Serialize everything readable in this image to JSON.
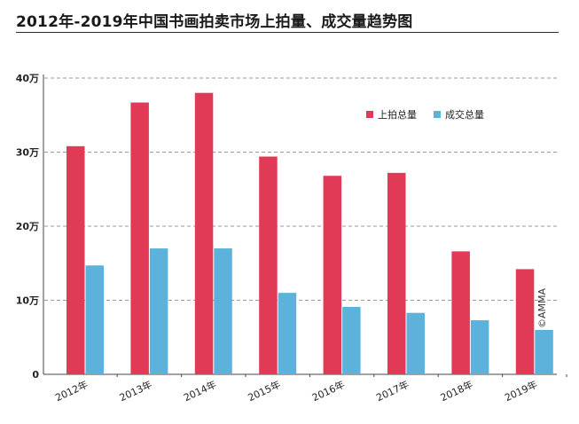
{
  "title": "2012年-2019年中国书画拍卖市场上拍量、成交量趋势图",
  "watermark": "©AMMA",
  "chart_data": {
    "type": "bar",
    "title": "2012年-2019年中国书画拍卖市场上拍量、成交量趋势图",
    "categories": [
      "2012年",
      "2013年",
      "2014年",
      "2015年",
      "2016年",
      "2017年",
      "2018年",
      "2019年"
    ],
    "series": [
      {
        "name": "上拍总量",
        "color": "#e03a56",
        "values": [
          30.8,
          36.7,
          38.0,
          29.4,
          26.8,
          27.2,
          16.6,
          14.2
        ]
      },
      {
        "name": "成交总量",
        "color": "#5cb2db",
        "values": [
          14.7,
          17.0,
          17.0,
          11.0,
          9.1,
          8.3,
          7.3,
          6.0
        ]
      }
    ],
    "yticks": [
      {
        "value": 0,
        "label": "0"
      },
      {
        "value": 10,
        "label": "10万"
      },
      {
        "value": 20,
        "label": "20万"
      },
      {
        "value": 30,
        "label": "30万"
      },
      {
        "value": 40,
        "label": "40万"
      }
    ],
    "ylim": [
      0,
      40
    ],
    "grid": true,
    "legend_position": "top-right"
  }
}
